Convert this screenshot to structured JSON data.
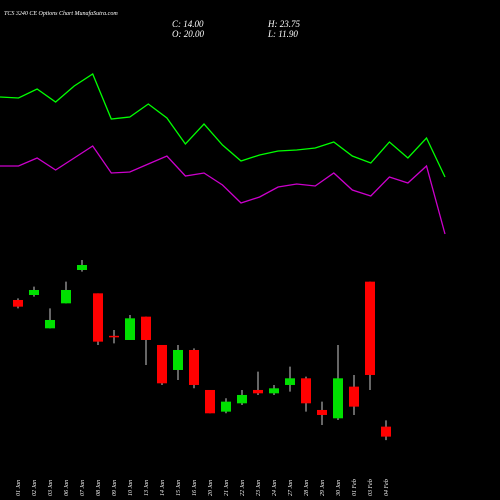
{
  "header": {
    "title": "TCS 3240 CE Options Chart MunafaSutra.com",
    "close": "C: 14.00",
    "high": "H: 23.75",
    "open": "O: 20.00",
    "low": "L: 11.90"
  },
  "chart_data": [
    {
      "type": "line",
      "categories": [
        null,
        null,
        null,
        null,
        null,
        null,
        null,
        null,
        null,
        null,
        null,
        null,
        null,
        null,
        null,
        null,
        null,
        null,
        null,
        null,
        null,
        null,
        null,
        null,
        null
      ],
      "ylim": [
        0,
        200
      ],
      "series": [
        {
          "color": "#00ff00",
          "values": [
            153,
            152,
            161,
            148,
            164,
            176,
            131,
            133,
            146,
            132,
            106,
            126,
            105,
            89,
            95,
            99,
            100,
            102,
            108,
            94,
            87,
            108,
            92,
            112,
            73
          ]
        },
        {
          "color": "#cc00cc",
          "values": [
            84,
            84,
            92,
            80,
            92,
            104,
            77,
            78,
            86,
            94,
            74,
            77,
            65,
            47,
            53,
            63,
            66,
            64,
            77,
            60,
            54,
            73,
            67,
            84,
            16
          ]
        }
      ]
    },
    {
      "type": "candlestick",
      "categories": [
        "01 Jan",
        "02 Jan",
        "03 Jan",
        "06 Jan",
        "07 Jan",
        "08 Jan",
        "09 Jan",
        "10 Jan",
        "13 Jan",
        "14 Jan",
        "15 Jan",
        "16 Jan",
        "20 Jan",
        "21 Jan",
        "22 Jan",
        "23 Jan",
        "24 Jan",
        "27 Jan",
        "28 Jan",
        "29 Jan",
        "30 Jan",
        "01 Feb",
        "03 Feb",
        "04 Feb"
      ],
      "open": [
        96,
        99,
        79,
        94,
        114,
        100,
        74.5,
        72,
        86,
        69,
        54,
        66,
        42,
        29,
        34,
        42,
        40,
        45,
        49,
        30,
        25,
        44,
        107,
        20
      ],
      "high": [
        97,
        104,
        91,
        107,
        120,
        100,
        78,
        87,
        86,
        69,
        69,
        67,
        42,
        37,
        42,
        53,
        45,
        56,
        50,
        35,
        69,
        51,
        107,
        23.75
      ],
      "low": [
        91,
        98,
        79,
        94,
        113,
        69,
        70,
        72,
        57,
        45,
        48,
        43,
        28,
        28,
        33,
        39,
        39,
        41,
        29,
        21,
        24,
        27,
        42,
        11.9
      ],
      "close": [
        92,
        102,
        84,
        102,
        117,
        71,
        74,
        85,
        72,
        46,
        66,
        45,
        28,
        35,
        39,
        40,
        43,
        49,
        34,
        27,
        49,
        32,
        51,
        14
      ],
      "up_color": "#00e000",
      "down_color": "#ff0000",
      "ylim": [
        10,
        120
      ]
    }
  ]
}
